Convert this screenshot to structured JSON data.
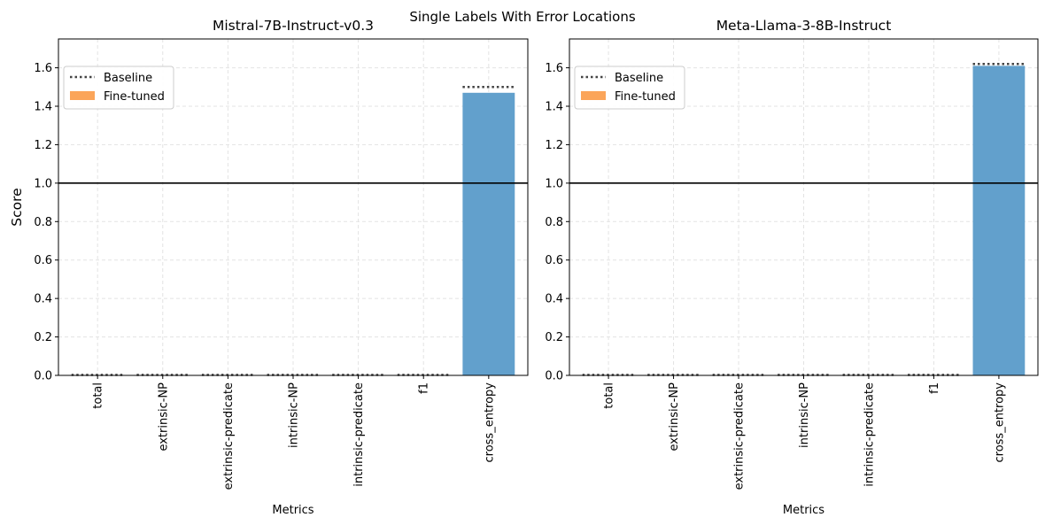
{
  "figure": {
    "suptitle": "Single Labels With Error Locations"
  },
  "legend": {
    "baseline_label": "Baseline",
    "finetuned_label": "Fine-tuned"
  },
  "colors": {
    "bar": "#62a0cc",
    "legend_finetuned": "#fba55a",
    "baseline": "#444444",
    "refline": "#000000",
    "grid": "#e3e3e3"
  },
  "chart_data": [
    {
      "type": "bar",
      "title": "Mistral-7B-Instruct-v0.3",
      "xlabel": "Metrics",
      "ylabel": "Score",
      "ylim": [
        0,
        1.75
      ],
      "yticks": [
        "0.0",
        "0.2",
        "0.4",
        "0.6",
        "0.8",
        "1.0",
        "1.2",
        "1.4",
        "1.6"
      ],
      "categories": [
        "total",
        "extrinsic-NP",
        "extrinsic-predicate",
        "intrinsic-NP",
        "intrinsic-predicate",
        "f1",
        "cross_entropy"
      ],
      "series": [
        {
          "name": "Baseline",
          "values": [
            0,
            0,
            0,
            0,
            0,
            0,
            1.5
          ]
        },
        {
          "name": "Fine-tuned",
          "values": [
            0,
            0,
            0,
            0,
            0,
            0,
            1.47
          ]
        }
      ],
      "reference_line": 1.0,
      "grid": true,
      "legend_position": "upper-left"
    },
    {
      "type": "bar",
      "title": "Meta-Llama-3-8B-Instruct",
      "xlabel": "Metrics",
      "ylabel": "",
      "ylim": [
        0,
        1.75
      ],
      "yticks": [
        "0.0",
        "0.2",
        "0.4",
        "0.6",
        "0.8",
        "1.0",
        "1.2",
        "1.4",
        "1.6"
      ],
      "categories": [
        "total",
        "extrinsic-NP",
        "extrinsic-predicate",
        "intrinsic-NP",
        "intrinsic-predicate",
        "f1",
        "cross_entropy"
      ],
      "series": [
        {
          "name": "Baseline",
          "values": [
            0,
            0,
            0,
            0,
            0,
            0,
            1.62
          ]
        },
        {
          "name": "Fine-tuned",
          "values": [
            0,
            0,
            0,
            0,
            0,
            0,
            1.61
          ]
        }
      ],
      "reference_line": 1.0,
      "grid": true,
      "legend_position": "upper-left"
    }
  ]
}
